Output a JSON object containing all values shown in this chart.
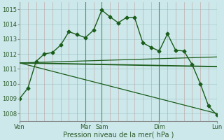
{
  "background_color": "#cce8ea",
  "grid_color": "#a8cdd0",
  "line_color": "#1a5c1a",
  "title": "Pression niveau de la mer( hPa )",
  "ylim": [
    1007.5,
    1015.5
  ],
  "yticks": [
    1008,
    1009,
    1010,
    1011,
    1012,
    1013,
    1014,
    1015
  ],
  "xtick_labels": [
    "Ven",
    "Mar",
    "Sam",
    "Dim",
    "Lun"
  ],
  "xtick_positions": [
    0,
    8,
    10,
    17,
    24
  ],
  "vlines_dark": [
    0,
    8,
    10,
    17,
    24
  ],
  "vlines_light": [
    1,
    2,
    3,
    4,
    5,
    6,
    7,
    9,
    11,
    12,
    13,
    14,
    15,
    16,
    18,
    19,
    20,
    21,
    22,
    23
  ],
  "series1": {
    "x": [
      0,
      1,
      2,
      3,
      4,
      5,
      6,
      7,
      8,
      9,
      10,
      11,
      12,
      13,
      14,
      15,
      16,
      17,
      18,
      19,
      20,
      21,
      22,
      23,
      24
    ],
    "y": [
      1009.0,
      1009.7,
      1011.5,
      1012.0,
      1012.1,
      1012.6,
      1013.5,
      1013.3,
      1013.1,
      1013.6,
      1014.95,
      1014.5,
      1014.1,
      1014.45,
      1014.45,
      1012.75,
      1012.45,
      1012.2,
      1013.35,
      1012.25,
      1012.2,
      1011.3,
      1010.0,
      1008.5,
      1007.9
    ],
    "marker": "D",
    "markersize": 2.5,
    "linewidth": 1.0
  },
  "series2": {
    "x": [
      0,
      24
    ],
    "y": [
      1011.4,
      1011.15
    ],
    "linewidth": 1.3
  },
  "series3": {
    "x": [
      0,
      24
    ],
    "y": [
      1011.4,
      1011.8
    ],
    "linewidth": 0.9
  },
  "series4": {
    "x": [
      0,
      24
    ],
    "y": [
      1011.4,
      1008.0
    ],
    "linewidth": 0.9
  }
}
